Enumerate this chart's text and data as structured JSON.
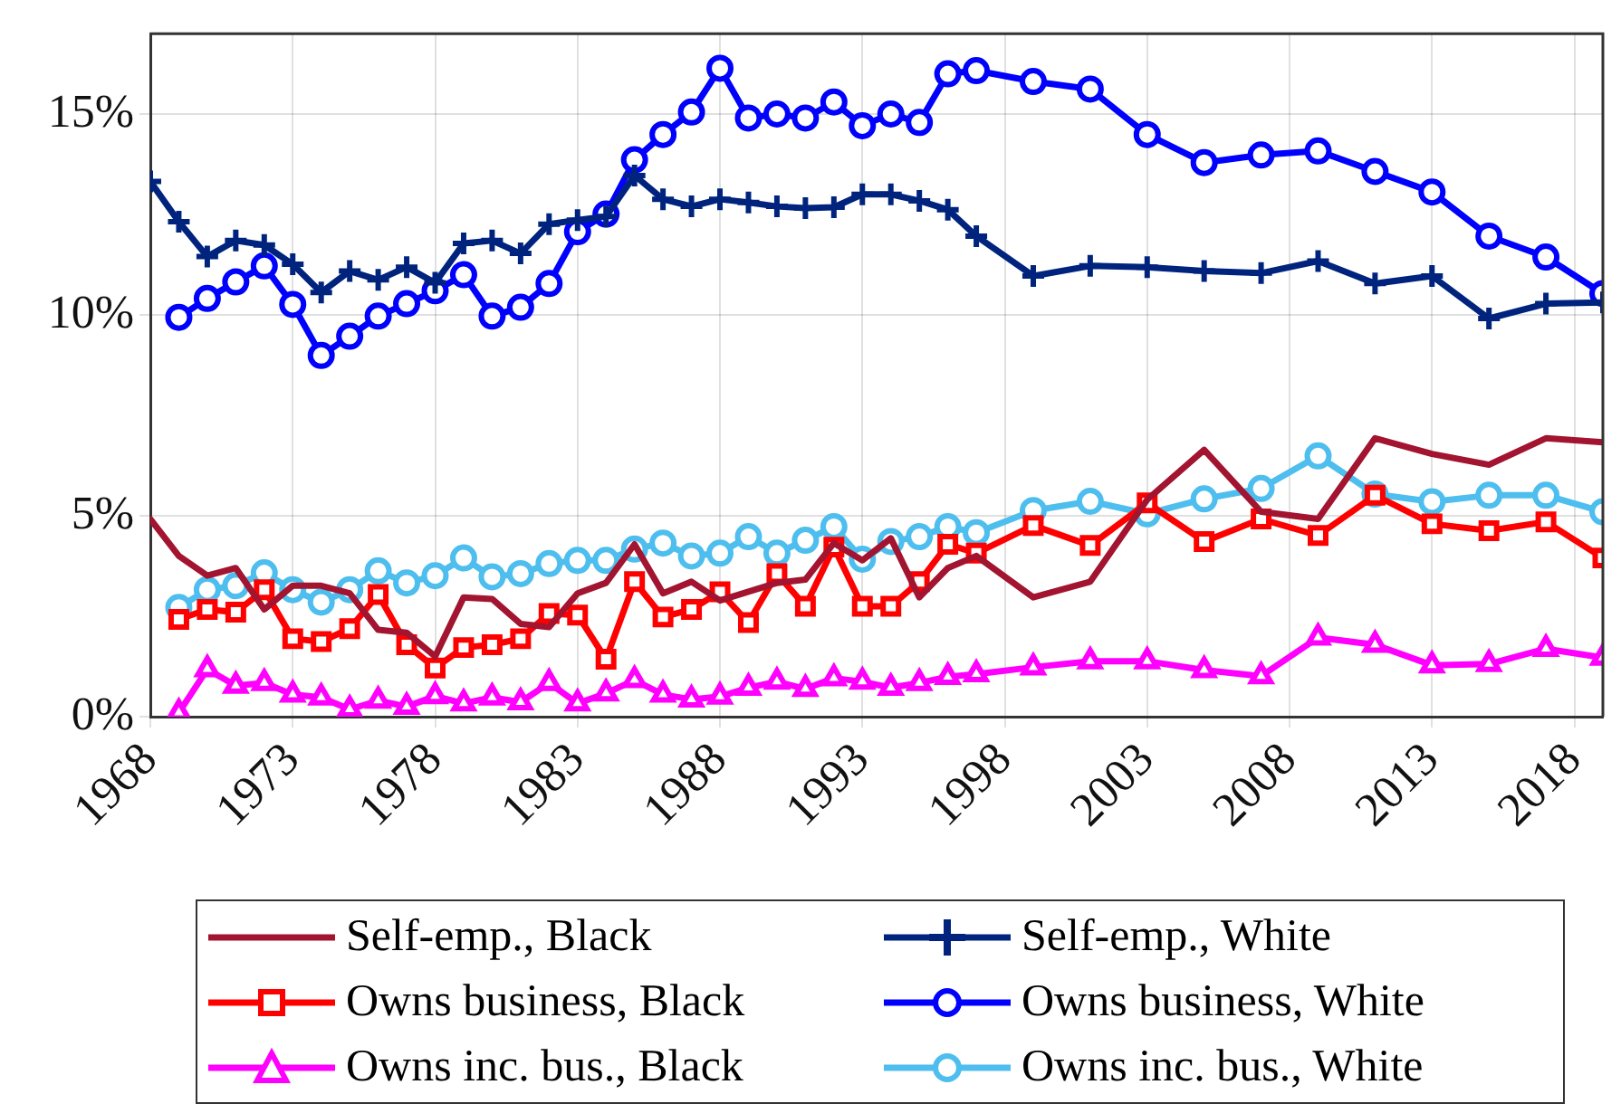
{
  "chart_data": {
    "type": "line",
    "x": [
      1968,
      1969,
      1970,
      1971,
      1972,
      1973,
      1974,
      1975,
      1976,
      1977,
      1978,
      1979,
      1980,
      1981,
      1982,
      1983,
      1984,
      1985,
      1986,
      1987,
      1988,
      1989,
      1990,
      1991,
      1992,
      1993,
      1994,
      1995,
      1996,
      1997,
      1999,
      2001,
      2003,
      2005,
      2007,
      2009,
      2011,
      2013,
      2015,
      2017,
      2019
    ],
    "xlim": [
      1968,
      2019
    ],
    "xticks": [
      1968,
      1973,
      1978,
      1983,
      1988,
      1993,
      1998,
      2003,
      2008,
      2013,
      2018
    ],
    "ylim": [
      0,
      17
    ],
    "yticks": [
      {
        "value": 0,
        "label": "0%"
      },
      {
        "value": 5,
        "label": "5%"
      },
      {
        "value": 10,
        "label": "10%"
      },
      {
        "value": 15,
        "label": "15%"
      }
    ],
    "grid": true,
    "legend": "bottom",
    "series": [
      {
        "name": "Self-emp., Black",
        "color": "#a2142f",
        "marker": "none",
        "values": [
          4.92,
          4.0,
          3.51,
          3.7,
          2.67,
          3.26,
          3.26,
          3.07,
          2.16,
          2.09,
          1.5,
          2.97,
          2.93,
          2.31,
          2.23,
          3.07,
          3.33,
          4.29,
          3.07,
          3.36,
          2.89,
          3.11,
          3.33,
          3.41,
          4.32,
          3.89,
          4.44,
          2.97,
          3.7,
          4.0,
          2.97,
          3.36,
          5.4,
          6.64,
          5.1,
          4.92,
          6.93,
          6.54,
          6.27,
          6.93,
          6.83
        ]
      },
      {
        "name": "Self-emp., White",
        "color": "#00247d",
        "marker": "cross",
        "values": [
          13.32,
          12.32,
          11.45,
          11.85,
          11.74,
          11.26,
          10.56,
          11.09,
          10.87,
          11.19,
          10.8,
          11.78,
          11.85,
          11.53,
          12.26,
          12.36,
          12.45,
          13.47,
          12.88,
          12.7,
          12.88,
          12.8,
          12.7,
          12.66,
          12.68,
          13.0,
          13.0,
          12.84,
          12.62,
          11.96,
          10.97,
          11.22,
          11.19,
          11.09,
          11.04,
          11.34,
          10.78,
          10.97,
          9.91,
          10.28,
          10.31
        ]
      },
      {
        "name": "Owns business, Black",
        "color": "#ff0000",
        "marker": "square",
        "values": [
          null,
          2.42,
          2.67,
          2.6,
          3.16,
          1.94,
          1.87,
          2.19,
          3.04,
          1.79,
          1.21,
          1.72,
          1.79,
          1.94,
          2.57,
          2.53,
          1.43,
          3.36,
          2.48,
          2.67,
          3.11,
          2.34,
          3.56,
          2.75,
          4.22,
          2.75,
          2.75,
          3.36,
          4.29,
          4.07,
          4.76,
          4.26,
          5.32,
          4.36,
          4.92,
          4.51,
          5.51,
          4.8,
          4.63,
          4.85,
          3.95
        ]
      },
      {
        "name": "Owns business, White",
        "color": "#0000ff",
        "marker": "circle",
        "values": [
          null,
          9.94,
          10.41,
          10.82,
          11.22,
          10.26,
          8.99,
          9.47,
          9.97,
          10.28,
          10.6,
          11.0,
          9.97,
          10.19,
          10.78,
          12.07,
          12.51,
          13.86,
          14.49,
          15.05,
          16.14,
          14.9,
          15.0,
          14.9,
          15.3,
          14.71,
          15.0,
          14.79,
          16.0,
          16.08,
          15.81,
          15.62,
          14.49,
          13.79,
          13.98,
          14.08,
          13.57,
          13.06,
          11.96,
          11.44,
          10.53
        ]
      },
      {
        "name": "Owns inc. bus., Black",
        "color": "#ff00ff",
        "marker": "triangle",
        "values": [
          null,
          0.1,
          1.18,
          0.77,
          0.84,
          0.55,
          0.48,
          0.18,
          0.4,
          0.25,
          0.51,
          0.33,
          0.48,
          0.36,
          0.84,
          0.33,
          0.58,
          0.91,
          0.55,
          0.43,
          0.5,
          0.72,
          0.87,
          0.69,
          0.96,
          0.87,
          0.72,
          0.84,
          0.99,
          1.06,
          1.23,
          1.38,
          1.38,
          1.16,
          1.01,
          1.97,
          1.79,
          1.28,
          1.31,
          1.69,
          1.47
        ]
      },
      {
        "name": "Owns inc. bus., White",
        "color": "#4dbeee",
        "marker": "circle",
        "values": [
          null,
          2.72,
          3.16,
          3.26,
          3.58,
          3.16,
          2.85,
          3.16,
          3.63,
          3.33,
          3.51,
          3.95,
          3.48,
          3.56,
          3.81,
          3.89,
          3.89,
          4.17,
          4.32,
          4.0,
          4.07,
          4.48,
          4.07,
          4.39,
          4.73,
          3.92,
          4.36,
          4.48,
          4.73,
          4.58,
          5.13,
          5.36,
          5.05,
          5.42,
          5.68,
          6.49,
          5.54,
          5.35,
          5.51,
          5.51,
          5.1
        ]
      }
    ]
  }
}
